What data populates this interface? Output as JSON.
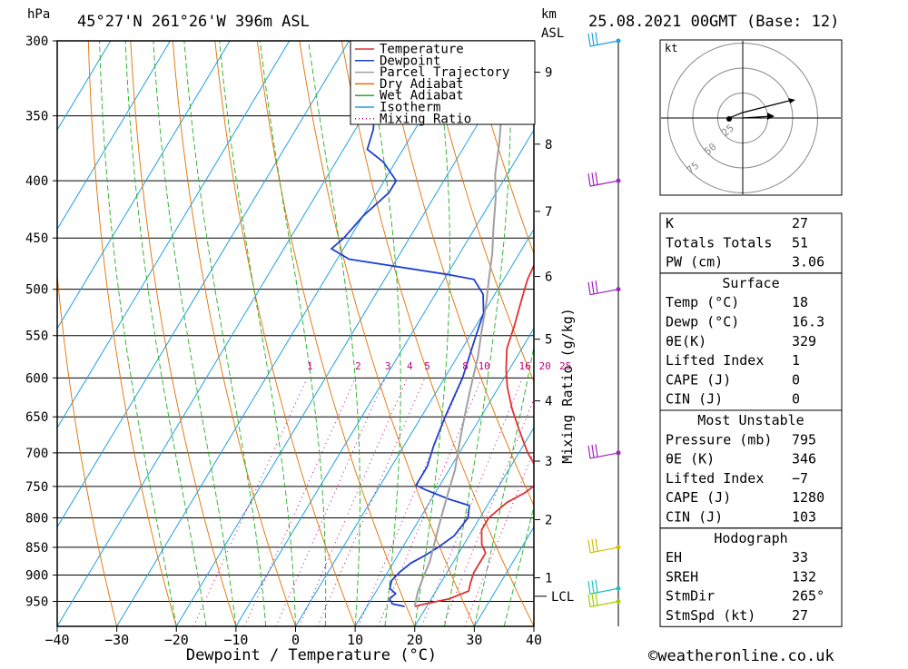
{
  "header": {
    "hpa_unit": "hPa",
    "location": "45°27'N  261°26'W  396m  ASL",
    "km_unit_1": "km",
    "km_unit_2": "ASL",
    "datetime": "25.08.2021  00GMT  (Base: 12)"
  },
  "chart_data": {
    "type": "line",
    "xlabel": "Dewpoint / Temperature (°C)",
    "x_ticks": [
      -40,
      -30,
      -20,
      -10,
      0,
      10,
      20,
      30,
      40
    ],
    "x_tick_labels": [
      "−40",
      "−30",
      "−20",
      "−10",
      "0",
      "10",
      "20",
      "30",
      "40"
    ],
    "xlim": [
      -40,
      40
    ],
    "ylim_hpa": [
      300,
      1000
    ],
    "pressure_levels": [
      300,
      350,
      400,
      450,
      500,
      550,
      600,
      650,
      700,
      750,
      800,
      850,
      900,
      950
    ],
    "height_km_ticks": [
      1,
      2,
      3,
      4,
      5,
      6,
      7,
      8,
      9
    ],
    "height_km_axis_label": "Mixing Ratio (g/kg)",
    "lcl_label": "LCL",
    "lcl_pressure": 940,
    "mixing_ratio_labels": [
      "1",
      "2",
      "3",
      "4",
      "5",
      "8",
      "10",
      "16",
      "20",
      "25"
    ],
    "mixing_ratio_label_pressure": 593,
    "legend": [
      {
        "name": "Temperature",
        "color": "#e03030",
        "style": "solid"
      },
      {
        "name": "Dewpoint",
        "color": "#2040d0",
        "style": "solid"
      },
      {
        "name": "Parcel Trajectory",
        "color": "#a0a0a0",
        "style": "solid"
      },
      {
        "name": "Dry Adiabat",
        "color": "#e07000",
        "style": "solid"
      },
      {
        "name": "Wet Adiabat",
        "color": "#20b020",
        "style": "solid"
      },
      {
        "name": "Isotherm",
        "color": "#20a0e0",
        "style": "solid"
      },
      {
        "name": "Mixing Ratio",
        "color": "#c00080",
        "style": "dotted"
      }
    ],
    "series": [
      {
        "name": "Temperature",
        "color": "#e03030",
        "points": [
          [
            18,
            960
          ],
          [
            19.5,
            955
          ],
          [
            23,
            945
          ],
          [
            25.5,
            930
          ],
          [
            25,
            915
          ],
          [
            24.5,
            895
          ],
          [
            24.5,
            875
          ],
          [
            24.5,
            860
          ],
          [
            23,
            845
          ],
          [
            21.5,
            820
          ],
          [
            21.5,
            800
          ],
          [
            23,
            775
          ],
          [
            25,
            760
          ],
          [
            26.5,
            742
          ],
          [
            24.5,
            722
          ],
          [
            21.5,
            700
          ],
          [
            18,
            670
          ],
          [
            14.5,
            640
          ],
          [
            11.5,
            612
          ],
          [
            9.5,
            590
          ],
          [
            7.5,
            565
          ],
          [
            6.5,
            540
          ],
          [
            5,
            510
          ],
          [
            4,
            490
          ],
          [
            3.5,
            470
          ],
          [
            3,
            455
          ],
          [
            1.5,
            435
          ],
          [
            -0.5,
            415
          ],
          [
            -3.5,
            395
          ],
          [
            -4.5,
            380
          ],
          [
            -6,
            360
          ],
          [
            -9,
            335
          ],
          [
            -13,
            305
          ]
        ]
      },
      {
        "name": "Dewpoint",
        "color": "#2040d0",
        "points": [
          [
            16.3,
            960
          ],
          [
            14,
            955
          ],
          [
            13,
            945
          ],
          [
            13.5,
            935
          ],
          [
            12,
            925
          ],
          [
            11.5,
            910
          ],
          [
            12,
            895
          ],
          [
            13,
            878
          ],
          [
            14.5,
            865
          ],
          [
            16,
            850
          ],
          [
            17.5,
            830
          ],
          [
            18,
            800
          ],
          [
            17,
            780
          ],
          [
            13,
            770
          ],
          [
            8,
            755
          ],
          [
            6,
            748
          ],
          [
            6,
            720
          ],
          [
            5,
            690
          ],
          [
            4,
            650
          ],
          [
            3,
            600
          ],
          [
            1,
            550
          ],
          [
            0,
            525
          ],
          [
            -2,
            505
          ],
          [
            -5,
            490
          ],
          [
            -10,
            485
          ],
          [
            -28,
            470
          ],
          [
            -32,
            460
          ],
          [
            -31,
            450
          ],
          [
            -30,
            430
          ],
          [
            -28,
            410
          ],
          [
            -28,
            400
          ],
          [
            -32,
            385
          ],
          [
            -36,
            375
          ],
          [
            -37,
            360
          ],
          [
            -42,
            320
          ],
          [
            -45,
            300
          ]
        ]
      },
      {
        "name": "Parcel Trajectory",
        "color": "#a0a0a0",
        "points": [
          [
            18,
            960
          ],
          [
            17.5,
            945
          ],
          [
            17,
            930
          ],
          [
            16.5,
            905
          ],
          [
            16,
            875
          ],
          [
            15,
            845
          ],
          [
            14,
            815
          ],
          [
            13,
            785
          ],
          [
            12,
            755
          ],
          [
            11,
            725
          ],
          [
            9.5,
            695
          ],
          [
            8,
            665
          ],
          [
            6.5,
            635
          ],
          [
            5,
            605
          ],
          [
            3.5,
            575
          ],
          [
            1.5,
            545
          ],
          [
            -0.5,
            515
          ],
          [
            -2.5,
            490
          ],
          [
            -4.5,
            465
          ],
          [
            -7,
            440
          ],
          [
            -9.5,
            415
          ],
          [
            -12,
            395
          ],
          [
            -14.5,
            370
          ],
          [
            -17.5,
            345
          ],
          [
            -21,
            320
          ],
          [
            -24,
            305
          ]
        ]
      }
    ]
  },
  "km_tick_pressures": [
    905,
    803,
    712,
    629,
    554,
    487,
    426,
    371,
    320
  ],
  "hodograph": {
    "unit": "kt",
    "ring_labels": [
      "25",
      "50",
      "75"
    ]
  },
  "indices": {
    "basic": [
      {
        "label": "K",
        "value": "27"
      },
      {
        "label": "Totals Totals",
        "value": "51"
      },
      {
        "label": "PW (cm)",
        "value": "3.06"
      }
    ],
    "surface_title": "Surface",
    "surface": [
      {
        "label": "Temp (°C)",
        "value": "18"
      },
      {
        "label": "Dewp (°C)",
        "value": "16.3"
      },
      {
        "label": "θE(K)",
        "value": "329"
      },
      {
        "label": "Lifted Index",
        "value": "1"
      },
      {
        "label": "CAPE (J)",
        "value": "0"
      },
      {
        "label": "CIN (J)",
        "value": "0"
      }
    ],
    "unstable_title": "Most Unstable",
    "unstable": [
      {
        "label": "Pressure (mb)",
        "value": "795"
      },
      {
        "label": "θE (K)",
        "value": "346"
      },
      {
        "label": "Lifted Index",
        "value": "−7"
      },
      {
        "label": "CAPE (J)",
        "value": "1280"
      },
      {
        "label": "CIN (J)",
        "value": "103"
      }
    ],
    "hodograph_title": "Hodograph",
    "hodograph": [
      {
        "label": "EH",
        "value": "33"
      },
      {
        "label": "SREH",
        "value": "132"
      },
      {
        "label": "StmDir",
        "value": "265°"
      },
      {
        "label": "StmSpd (kt)",
        "value": "27"
      }
    ]
  },
  "wind_barbs": [
    {
      "pressure": 300,
      "color": "#20a0e0"
    },
    {
      "pressure": 400,
      "color": "#a020c0"
    },
    {
      "pressure": 500,
      "color": "#a020c0"
    },
    {
      "pressure": 700,
      "color": "#a020c0"
    },
    {
      "pressure": 850,
      "color": "#d0c000"
    },
    {
      "pressure": 925,
      "color": "#20c0c0"
    },
    {
      "pressure": 950,
      "color": "#a0d000"
    }
  ],
  "footer": {
    "copyright": "©weatheronline.co.uk"
  }
}
